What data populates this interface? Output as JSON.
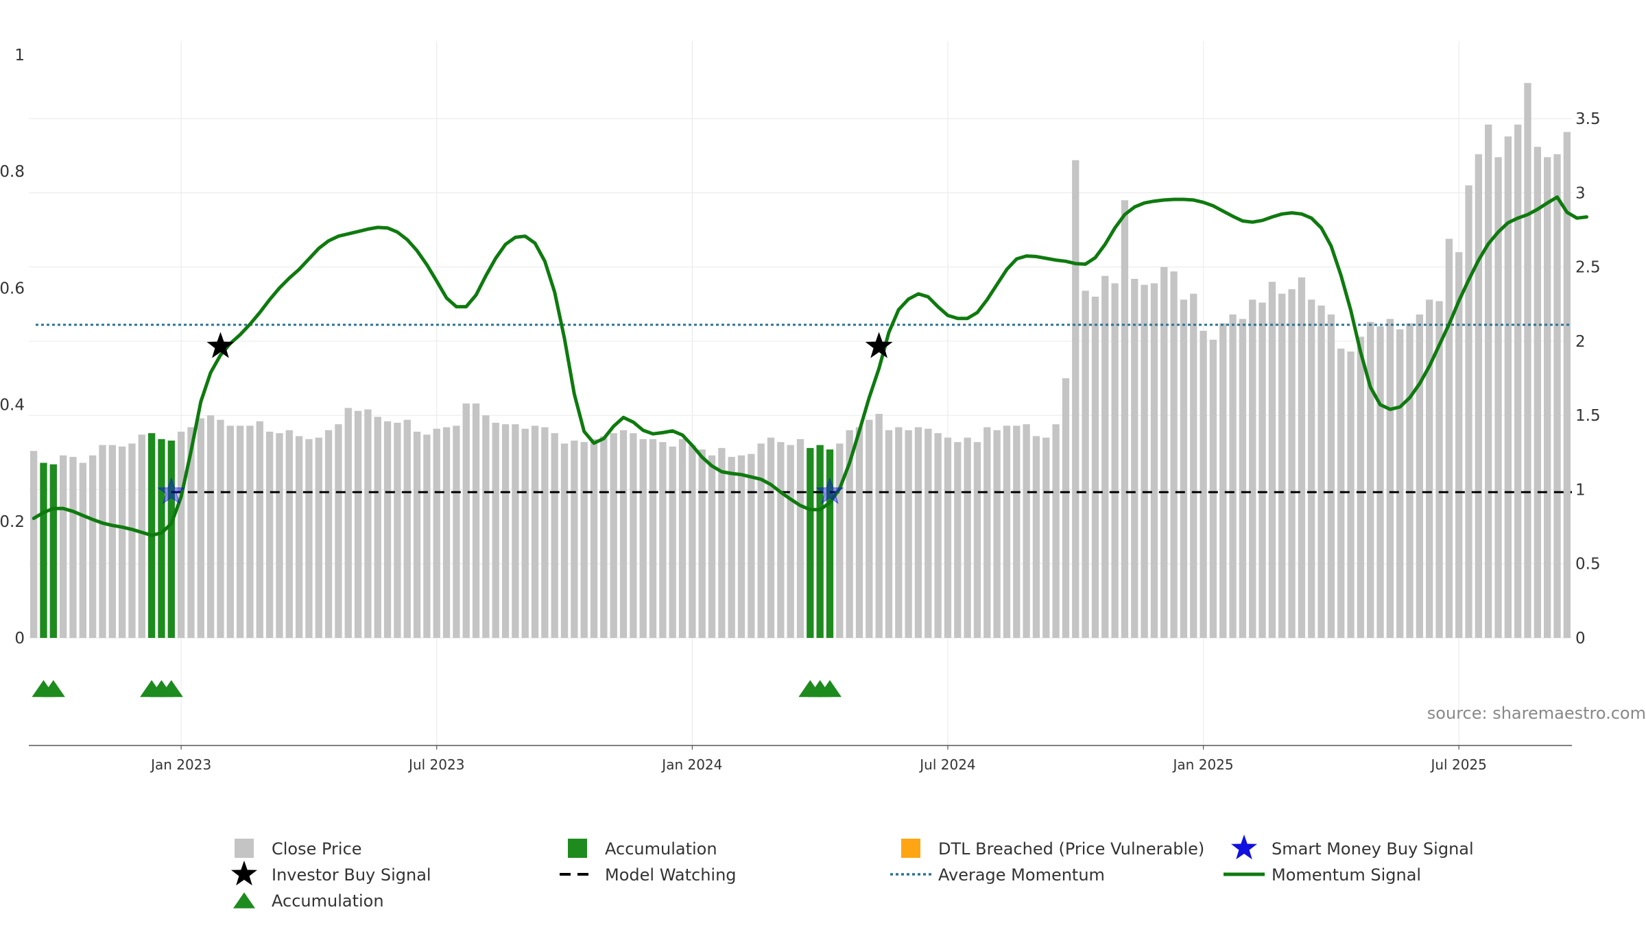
{
  "chart_data": {
    "type": "bar",
    "title": "",
    "xlabel": "",
    "ylabel": "",
    "left_axis": {
      "ylim": [
        0,
        1
      ],
      "ticks": [
        {
          "v": 0,
          "label": "0"
        },
        {
          "v": 0.2,
          "label": "0.2"
        },
        {
          "v": 0.4,
          "label": "0.4"
        },
        {
          "v": 0.6,
          "label": "0.6"
        },
        {
          "v": 0.8,
          "label": "0.8"
        },
        {
          "v": 1,
          "label": "1"
        }
      ]
    },
    "right_axis": {
      "ylim": [
        0,
        3.93
      ],
      "ticks": [
        {
          "v": 0,
          "label": "0"
        },
        {
          "v": 0.5,
          "label": "0.5"
        },
        {
          "v": 1,
          "label": "1"
        },
        {
          "v": 1.5,
          "label": "1.5"
        },
        {
          "v": 2,
          "label": "2"
        },
        {
          "v": 2.5,
          "label": "2.5"
        },
        {
          "v": 3,
          "label": "3"
        },
        {
          "v": 3.5,
          "label": "3.5"
        }
      ]
    },
    "x_ticks": [
      {
        "label": "Jan 2023",
        "index": 15
      },
      {
        "label": "Jul 2023",
        "index": 41
      },
      {
        "label": "Jan 2024",
        "index": 67
      },
      {
        "label": "Jul 2024",
        "index": 93
      },
      {
        "label": "Jan 2025",
        "index": 119
      },
      {
        "label": "Jul 2025",
        "index": 145
      }
    ],
    "close_price": [
      1.26,
      1.18,
      1.17,
      1.23,
      1.22,
      1.18,
      1.23,
      1.3,
      1.3,
      1.29,
      1.31,
      1.37,
      1.38,
      1.34,
      1.33,
      1.39,
      1.42,
      1.48,
      1.5,
      1.47,
      1.43,
      1.43,
      1.43,
      1.46,
      1.39,
      1.38,
      1.4,
      1.36,
      1.34,
      1.35,
      1.4,
      1.44,
      1.55,
      1.53,
      1.54,
      1.49,
      1.46,
      1.45,
      1.47,
      1.39,
      1.37,
      1.41,
      1.42,
      1.43,
      1.58,
      1.58,
      1.5,
      1.45,
      1.44,
      1.44,
      1.41,
      1.43,
      1.42,
      1.38,
      1.31,
      1.33,
      1.32,
      1.34,
      1.36,
      1.38,
      1.4,
      1.38,
      1.34,
      1.34,
      1.32,
      1.29,
      1.34,
      1.3,
      1.27,
      1.23,
      1.28,
      1.22,
      1.23,
      1.24,
      1.31,
      1.35,
      1.32,
      1.3,
      1.34,
      1.28,
      1.3,
      1.27,
      1.31,
      1.4,
      1.42,
      1.47,
      1.51,
      1.4,
      1.42,
      1.4,
      1.42,
      1.41,
      1.38,
      1.35,
      1.32,
      1.35,
      1.32,
      1.42,
      1.4,
      1.43,
      1.43,
      1.44,
      1.36,
      1.35,
      1.44,
      1.75,
      3.22,
      2.34,
      2.3,
      2.44,
      2.39,
      2.95,
      2.42,
      2.38,
      2.39,
      2.5,
      2.47,
      2.28,
      2.32,
      2.07,
      2.01,
      2.12,
      2.18,
      2.15,
      2.28,
      2.26,
      2.4,
      2.32,
      2.35,
      2.43,
      2.28,
      2.24,
      2.18,
      1.95,
      1.93,
      2.03,
      2.13,
      2.1,
      2.15,
      2.08,
      2.12,
      2.18,
      2.28,
      2.27,
      2.69,
      2.6,
      3.05,
      3.26,
      3.46,
      3.24,
      3.38,
      3.46,
      3.74,
      3.31,
      3.24,
      3.26,
      3.41
    ],
    "accumulation_bar_indices": [
      1,
      2,
      12,
      13,
      14,
      79,
      80,
      81
    ],
    "accumulation_marker_indices": [
      1,
      2,
      12,
      13,
      14,
      79,
      80,
      81
    ],
    "momentum_signal": [
      0.205,
      0.215,
      0.222,
      0.222,
      0.217,
      0.21,
      0.203,
      0.197,
      0.193,
      0.19,
      0.186,
      0.181,
      0.176,
      0.18,
      0.196,
      0.242,
      0.32,
      0.405,
      0.455,
      0.485,
      0.505,
      0.52,
      0.538,
      0.558,
      0.58,
      0.6,
      0.617,
      0.632,
      0.65,
      0.668,
      0.681,
      0.689,
      0.693,
      0.697,
      0.701,
      0.704,
      0.703,
      0.696,
      0.683,
      0.664,
      0.64,
      0.612,
      0.583,
      0.568,
      0.568,
      0.588,
      0.621,
      0.651,
      0.675,
      0.687,
      0.689,
      0.677,
      0.646,
      0.593,
      0.513,
      0.418,
      0.354,
      0.334,
      0.342,
      0.363,
      0.378,
      0.37,
      0.356,
      0.35,
      0.352,
      0.355,
      0.348,
      0.33,
      0.31,
      0.295,
      0.285,
      0.282,
      0.28,
      0.276,
      0.272,
      0.263,
      0.25,
      0.238,
      0.227,
      0.22,
      0.22,
      0.232,
      0.256,
      0.3,
      0.355,
      0.412,
      0.462,
      0.524,
      0.563,
      0.581,
      0.59,
      0.585,
      0.568,
      0.553,
      0.548,
      0.548,
      0.558,
      0.58,
      0.606,
      0.632,
      0.65,
      0.655,
      0.654,
      0.651,
      0.648,
      0.646,
      0.642,
      0.641,
      0.652,
      0.675,
      0.703,
      0.726,
      0.739,
      0.746,
      0.749,
      0.751,
      0.752,
      0.752,
      0.751,
      0.747,
      0.741,
      0.732,
      0.723,
      0.715,
      0.713,
      0.716,
      0.722,
      0.727,
      0.729,
      0.727,
      0.72,
      0.703,
      0.672,
      0.622,
      0.562,
      0.49,
      0.43,
      0.4,
      0.392,
      0.396,
      0.412,
      0.436,
      0.466,
      0.502,
      0.538,
      0.578,
      0.614,
      0.648,
      0.676,
      0.696,
      0.712,
      0.72,
      0.726,
      0.735,
      0.746,
      0.756,
      0.73,
      0.72,
      0.722
    ],
    "average_momentum": 0.537,
    "model_watching_level": 0.25,
    "investor_buy_signals": [
      {
        "index": 19,
        "value": 0.5
      },
      {
        "index": 86,
        "value": 0.5
      }
    ],
    "smart_money_buy_signals": [
      {
        "index": 14,
        "value": 0.25
      },
      {
        "index": 81,
        "value": 0.25
      }
    ],
    "legend": [
      {
        "key": "close",
        "label": "Close Price"
      },
      {
        "key": "accum_bar",
        "label": "Accumulation"
      },
      {
        "key": "dtl",
        "label": "DTL Breached (Price Vulnerable)"
      },
      {
        "key": "smart",
        "label": "Smart Money Buy Signal"
      },
      {
        "key": "investor",
        "label": "Investor Buy Signal"
      },
      {
        "key": "watching",
        "label": "Model Watching"
      },
      {
        "key": "avg",
        "label": "Average Momentum"
      },
      {
        "key": "momentum",
        "label": "Momentum Signal"
      },
      {
        "key": "accum_marker",
        "label": "Accumulation"
      }
    ],
    "colors": {
      "close": "#c4c4c4",
      "accumulation": "#1e8b1e",
      "dtl": "#ffa514",
      "smart_money": "#1010e0",
      "investor": "#000000",
      "watching": "#000000",
      "average": "#2a7296",
      "momentum": "#0e7a0e",
      "grid": "#ececec",
      "axis": "#555555"
    }
  },
  "source": "source: sharemaestro.com"
}
